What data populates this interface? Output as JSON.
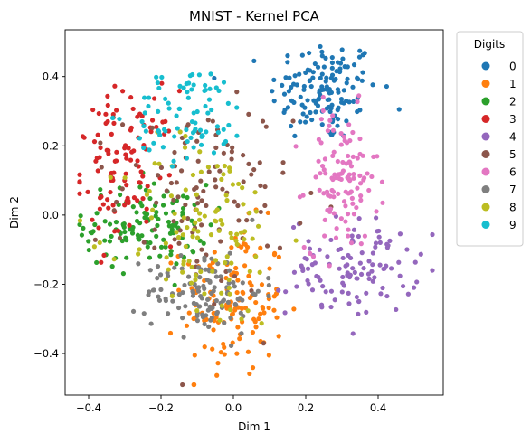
{
  "chart_data": {
    "type": "scatter",
    "title": "MNIST - Kernel PCA",
    "xlabel": "Dim 1",
    "ylabel": "Dim 2",
    "xlim": [
      -0.465,
      0.58
    ],
    "ylim": [
      -0.52,
      0.535
    ],
    "xticks": [
      -0.4,
      -0.2,
      0.0,
      0.2,
      0.4
    ],
    "xtick_labels": [
      "−0.4",
      "−0.2",
      "0.0",
      "0.2",
      "0.4"
    ],
    "yticks": [
      -0.4,
      -0.2,
      0.0,
      0.2,
      0.4
    ],
    "ytick_labels": [
      "−0.4",
      "−0.2",
      "0.0",
      "0.2",
      "0.4"
    ],
    "grid": false,
    "legend": {
      "title": "Digits",
      "placement": "outside-right-top"
    },
    "series": [
      {
        "name": "0",
        "color": "#1f77b4",
        "center": [
          0.25,
          0.36
        ],
        "spread": [
          0.075,
          0.075
        ],
        "count": 140
      },
      {
        "name": "1",
        "color": "#ff7f0e",
        "center": [
          0.0,
          -0.25
        ],
        "spread": [
          0.07,
          0.11
        ],
        "count": 130
      },
      {
        "name": "2",
        "color": "#2ca02c",
        "center": [
          -0.24,
          -0.03
        ],
        "spread": [
          0.085,
          0.06
        ],
        "count": 120
      },
      {
        "name": "3",
        "color": "#d62728",
        "center": [
          -0.3,
          0.14
        ],
        "spread": [
          0.07,
          0.11
        ],
        "count": 110
      },
      {
        "name": "4",
        "color": "#9467bd",
        "center": [
          0.33,
          -0.15
        ],
        "spread": [
          0.09,
          0.07
        ],
        "count": 115
      },
      {
        "name": "5",
        "color": "#8c564b",
        "center": [
          -0.08,
          0.05
        ],
        "spread": [
          0.12,
          0.14
        ],
        "count": 110
      },
      {
        "name": "6",
        "color": "#e377c2",
        "center": [
          0.3,
          0.1
        ],
        "spread": [
          0.05,
          0.1
        ],
        "count": 115
      },
      {
        "name": "7",
        "color": "#7f7f7f",
        "center": [
          -0.08,
          -0.22
        ],
        "spread": [
          0.08,
          0.06
        ],
        "count": 120
      },
      {
        "name": "8",
        "color": "#bcbd22",
        "center": [
          -0.08,
          -0.05
        ],
        "spread": [
          0.11,
          0.14
        ],
        "count": 110
      },
      {
        "name": "9",
        "color": "#17becf",
        "center": [
          -0.12,
          0.29
        ],
        "spread": [
          0.08,
          0.07
        ],
        "count": 85
      }
    ]
  }
}
